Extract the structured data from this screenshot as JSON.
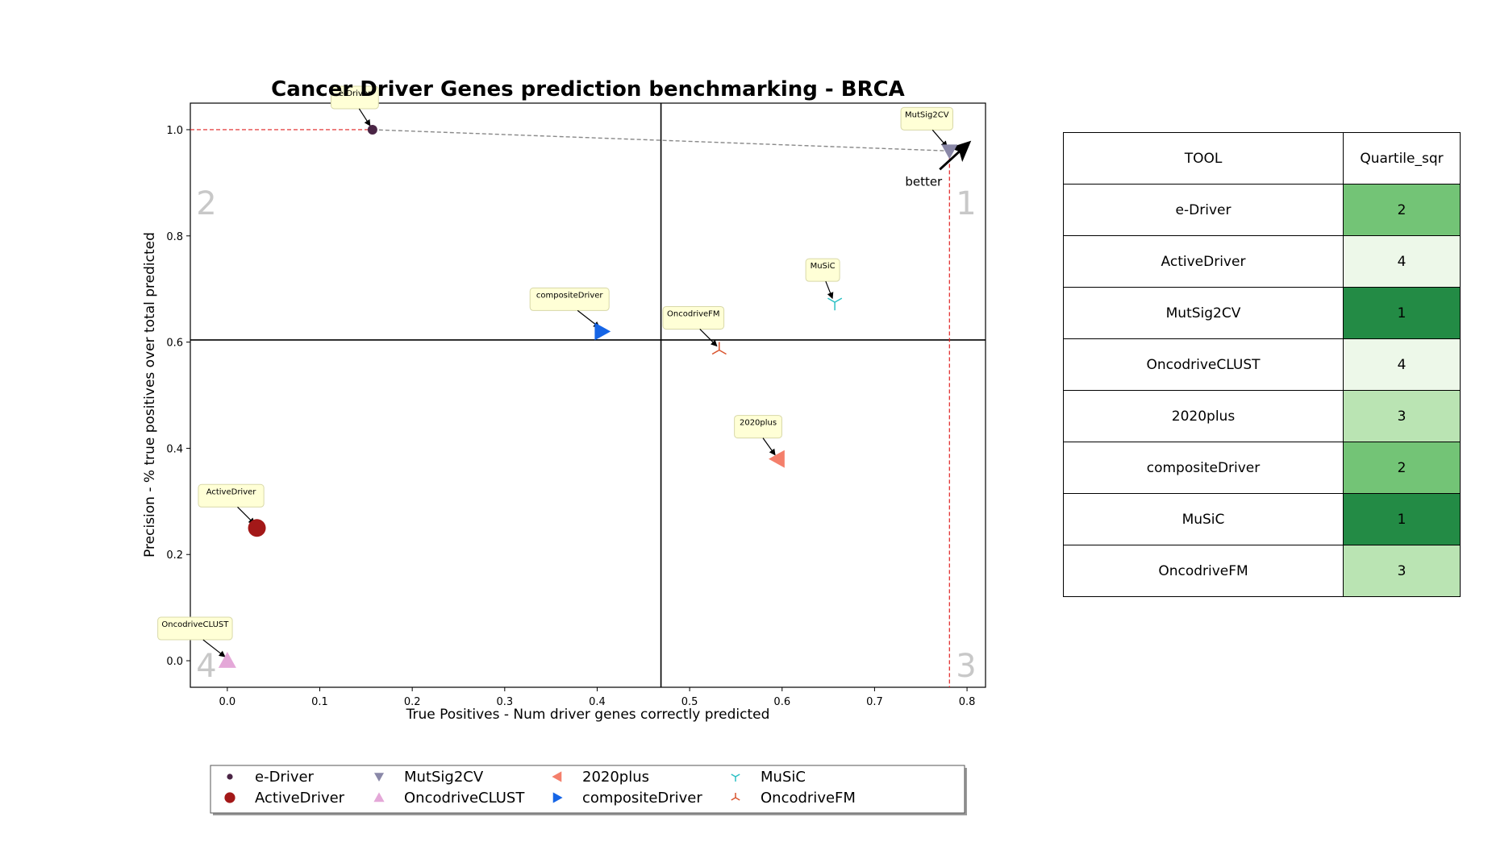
{
  "chart_data": {
    "type": "scatter",
    "title": "Cancer Driver Genes prediction benchmarking - BRCA",
    "xlabel": "True Positives - Num driver genes correctly predicted",
    "ylabel": "Precision - % true positives over total predicted",
    "xlim": [
      -0.04,
      0.82
    ],
    "ylim": [
      -0.05,
      1.05
    ],
    "xticks": [
      "0.0",
      "0.1",
      "0.2",
      "0.3",
      "0.4",
      "0.5",
      "0.6",
      "0.7",
      "0.8"
    ],
    "yticks": [
      "0.0",
      "0.2",
      "0.4",
      "0.6",
      "0.8",
      "1.0"
    ],
    "series": [
      {
        "name": "e-Driver",
        "x": 0.157,
        "y": 1.0,
        "color": "#4a2545",
        "marker": "circle-small"
      },
      {
        "name": "ActiveDriver",
        "x": 0.032,
        "y": 0.25,
        "color": "#a31818",
        "marker": "circle"
      },
      {
        "name": "MutSig2CV",
        "x": 0.781,
        "y": 0.96,
        "color": "#8a88a8",
        "marker": "triangle-down"
      },
      {
        "name": "OncodriveCLUST",
        "x": 0.0,
        "y": 0.0,
        "color": "#e4a8d8",
        "marker": "triangle-up"
      },
      {
        "name": "2020plus",
        "x": 0.595,
        "y": 0.38,
        "color": "#f47f6b",
        "marker": "triangle-left"
      },
      {
        "name": "compositeDriver",
        "x": 0.405,
        "y": 0.62,
        "color": "#1665e6",
        "marker": "triangle-right"
      },
      {
        "name": "MuSiC",
        "x": 0.657,
        "y": 0.675,
        "color": "#2cc0c4",
        "marker": "tri-down"
      },
      {
        "name": "OncodriveFM",
        "x": 0.532,
        "y": 0.585,
        "color": "#d9542e",
        "marker": "tri-up"
      }
    ],
    "quartile_lines": {
      "x": 0.469,
      "y": 0.604
    },
    "pareto_dashed_x": 0.781,
    "pareto_dashed_y": 1.0,
    "quadrant_labels": [
      "1",
      "2",
      "3",
      "4"
    ],
    "better_label": "better",
    "legend_placement": "bottom"
  },
  "table": {
    "headers": [
      "TOOL",
      "Quartile_sqr"
    ],
    "rows": [
      {
        "tool": "e-Driver",
        "quartile": "2",
        "color": "#73c476"
      },
      {
        "tool": "ActiveDriver",
        "quartile": "4",
        "color": "#edf8e9"
      },
      {
        "tool": "MutSig2CV",
        "quartile": "1",
        "color": "#238b45"
      },
      {
        "tool": "OncodriveCLUST",
        "quartile": "4",
        "color": "#edf8e9"
      },
      {
        "tool": "2020plus",
        "quartile": "3",
        "color": "#bae4b3"
      },
      {
        "tool": "compositeDriver",
        "quartile": "2",
        "color": "#73c476"
      },
      {
        "tool": "MuSiC",
        "quartile": "1",
        "color": "#238b45"
      },
      {
        "tool": "OncodriveFM",
        "quartile": "3",
        "color": "#bae4b3"
      }
    ]
  }
}
